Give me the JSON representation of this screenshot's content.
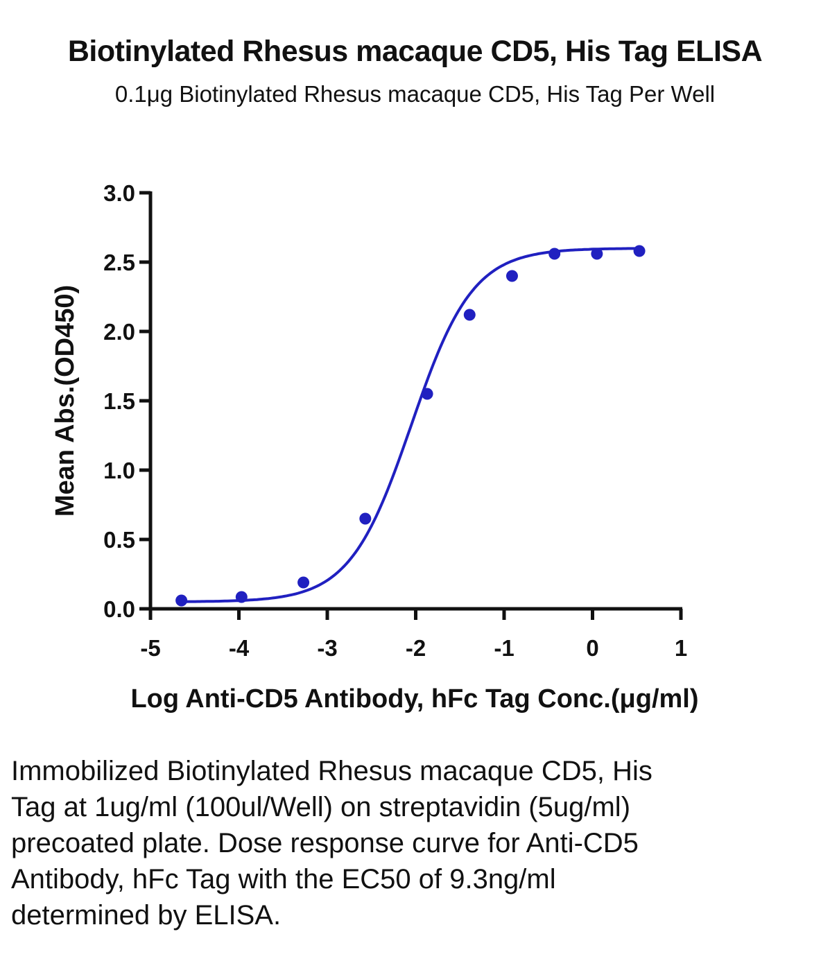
{
  "header": {
    "title": "Biotinylated Rhesus macaque CD5, His Tag ELISA",
    "subtitle": "0.1μg Biotinylated Rhesus macaque CD5, His Tag Per Well"
  },
  "caption": "Immobilized Biotinylated Rhesus macaque CD5, His Tag at 1ug/ml (100ul/Well) on streptavidin (5ug/ml) precoated plate. Dose response curve for Anti-CD5 Antibody, hFc Tag with the EC50 of 9.3ng/ml determined by ELISA.",
  "colors": {
    "series": "#2020c0",
    "axis": "#111111"
  },
  "chart_data": {
    "type": "scatter",
    "title": "Biotinylated Rhesus macaque CD5, His Tag ELISA",
    "subtitle": "0.1μg Biotinylated Rhesus macaque CD5, His Tag Per Well",
    "xlabel": "Log Anti-CD5 Antibody, hFc Tag Conc.(μg/ml)",
    "ylabel": "Mean Abs.(OD450)",
    "xlim": [
      -5,
      1
    ],
    "ylim": [
      0,
      3
    ],
    "xticks": [
      "-5",
      "-4",
      "-3",
      "-2",
      "-1",
      "0",
      "1"
    ],
    "yticks": [
      "0.0",
      "0.5",
      "1.0",
      "1.5",
      "2.0",
      "2.5",
      "3.0"
    ],
    "grid": false,
    "series": [
      {
        "x": [
          -4.65,
          -3.97,
          -3.27,
          -2.57,
          -1.87,
          -1.39,
          -0.91,
          -0.43,
          0.05,
          0.53
        ],
        "y": [
          0.06,
          0.085,
          0.19,
          0.65,
          1.55,
          2.12,
          2.4,
          2.56,
          2.56,
          2.58
        ],
        "fit": "four-parameter logistic curve"
      }
    ]
  }
}
